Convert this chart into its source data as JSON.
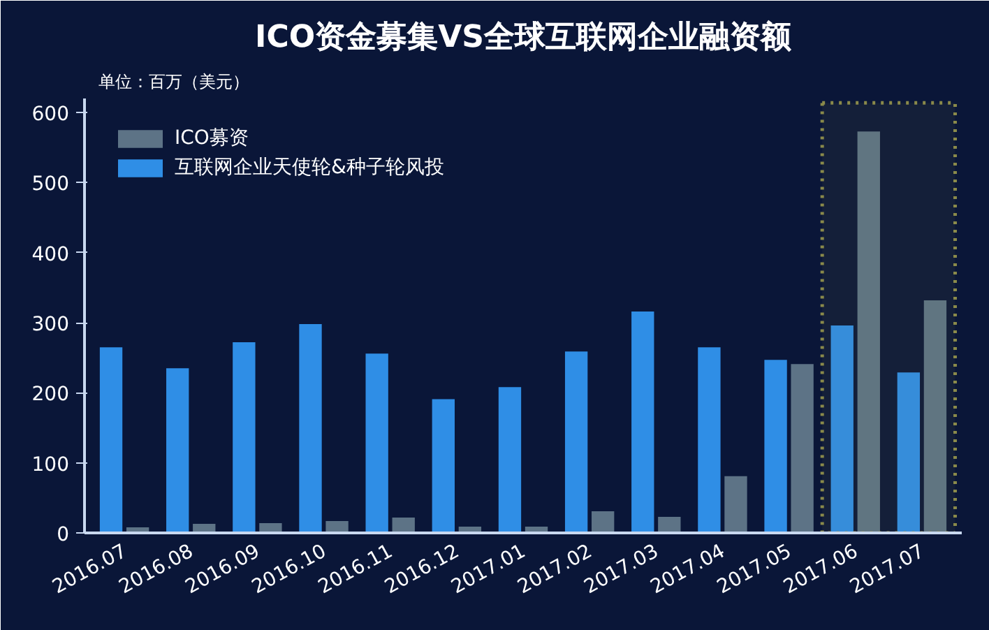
{
  "chart_data": {
    "type": "bar",
    "title": "ICO资金募集VS全球互联网企业融资额",
    "ylabel": "单位：百万（美元）",
    "categories": [
      "2016.07",
      "2016.08",
      "2016.09",
      "2016.10",
      "2016.11",
      "2016.12",
      "2017.01",
      "2017.02",
      "2017.03",
      "2017.04",
      "2017.05",
      "2017.06",
      "2017.07"
    ],
    "series": [
      {
        "name": "互联网企业天使轮&种子轮风投",
        "color": "#2f8ee6",
        "values": [
          265,
          235,
          272,
          298,
          256,
          191,
          208,
          259,
          316,
          265,
          247,
          296,
          229
        ]
      },
      {
        "name": "ICO募资",
        "color": "#5d7386",
        "values": [
          8,
          13,
          14,
          17,
          22,
          9,
          9,
          31,
          23,
          81,
          241,
          573,
          332
        ]
      }
    ],
    "ylim": [
      0,
      620
    ],
    "yticks": [
      0,
      100,
      200,
      300,
      400,
      500,
      600
    ],
    "bands": [
      {
        "axis": "x",
        "from": "2017.06",
        "to": "2017.07",
        "color": "#8a8a4a"
      }
    ],
    "grid": false,
    "legend": "top left"
  }
}
